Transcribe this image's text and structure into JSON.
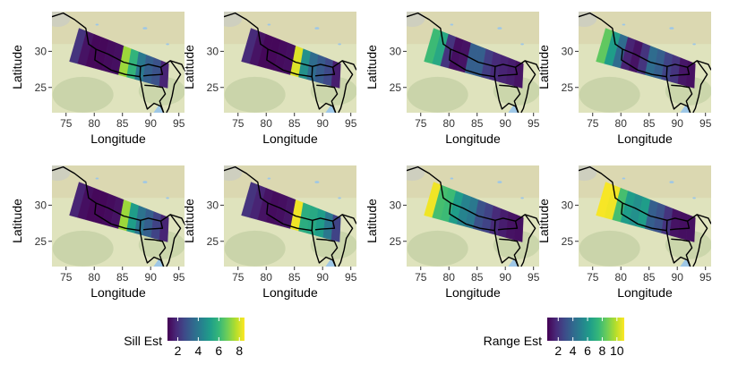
{
  "x_axis_title": "Longitude",
  "y_axis_title": "Latitude",
  "x_ticks": [
    "75",
    "80",
    "85",
    "90",
    "95"
  ],
  "x_tick_values": [
    75,
    80,
    85,
    90,
    95
  ],
  "y_ticks": [
    "30",
    "25"
  ],
  "y_tick_values": [
    30,
    25
  ],
  "lon_range": [
    72.5,
    96
  ],
  "lat_range": [
    21.5,
    35.5
  ],
  "colors": {
    "basemap_light": "#dfe3bd",
    "basemap_tan": "#d7cfa7",
    "basemap_green": "#b8c99a",
    "water": "#9ec7e6",
    "border": "#000000",
    "viridis": [
      "#440154",
      "#482878",
      "#3e4a89",
      "#31688e",
      "#26828e",
      "#1f9e89",
      "#35b779",
      "#6ece58",
      "#b5de2b",
      "#fde725"
    ]
  },
  "maps": [
    {
      "name": "sill-est-map-1",
      "variable": "Sill Est",
      "zones": [
        0.15,
        0.05,
        0.02,
        0.02,
        0.03,
        0.04,
        0.85,
        0.65,
        0.4,
        0.3,
        0.25,
        0.1
      ]
    },
    {
      "name": "sill-est-map-2",
      "variable": "Sill Est",
      "zones": [
        0.12,
        0.05,
        0.02,
        0.02,
        0.03,
        0.04,
        0.95,
        0.5,
        0.35,
        0.28,
        0.22,
        0.08
      ]
    },
    {
      "name": "range-est-map-1",
      "variable": "Range Est",
      "zones": [
        0.68,
        0.6,
        0.15,
        0.04,
        0.05,
        0.3,
        0.3,
        0.18,
        0.12,
        0.1,
        0.08,
        0.05
      ]
    },
    {
      "name": "range-est-map-2",
      "variable": "Range Est",
      "zones": [
        0.75,
        0.55,
        0.35,
        0.1,
        0.05,
        0.15,
        0.35,
        0.3,
        0.2,
        0.15,
        0.06,
        0.04
      ]
    },
    {
      "name": "sill-est-map-3",
      "variable": "Sill Est",
      "zones": [
        0.1,
        0.04,
        0.02,
        0.02,
        0.03,
        0.05,
        0.85,
        0.55,
        0.38,
        0.3,
        0.2,
        0.1
      ]
    },
    {
      "name": "sill-est-map-4",
      "variable": "Sill Est",
      "zones": [
        0.15,
        0.1,
        0.05,
        0.03,
        0.04,
        0.06,
        0.98,
        0.62,
        0.6,
        0.55,
        0.4,
        0.2
      ]
    },
    {
      "name": "range-est-map-3",
      "variable": "Range Est",
      "zones": [
        0.98,
        0.7,
        0.68,
        0.55,
        0.45,
        0.4,
        0.25,
        0.2,
        0.12,
        0.08,
        0.05,
        0.04
      ]
    },
    {
      "name": "range-est-map-4",
      "variable": "Range Est",
      "zones": [
        0.99,
        0.98,
        0.7,
        0.55,
        0.5,
        0.55,
        0.3,
        0.25,
        0.15,
        0.05,
        0.04,
        0.04
      ]
    }
  ],
  "legends": [
    {
      "title": "Sill Est",
      "min": 1,
      "max": 8.5,
      "tick_labels": [
        "2",
        "4",
        "6",
        "8"
      ],
      "tick_values": [
        2,
        4,
        6,
        8
      ]
    },
    {
      "title": "Range Est",
      "min": 0.5,
      "max": 11,
      "tick_labels": [
        "2",
        "4",
        "6",
        "8",
        "10"
      ],
      "tick_values": [
        2,
        4,
        6,
        8,
        10
      ]
    }
  ]
}
